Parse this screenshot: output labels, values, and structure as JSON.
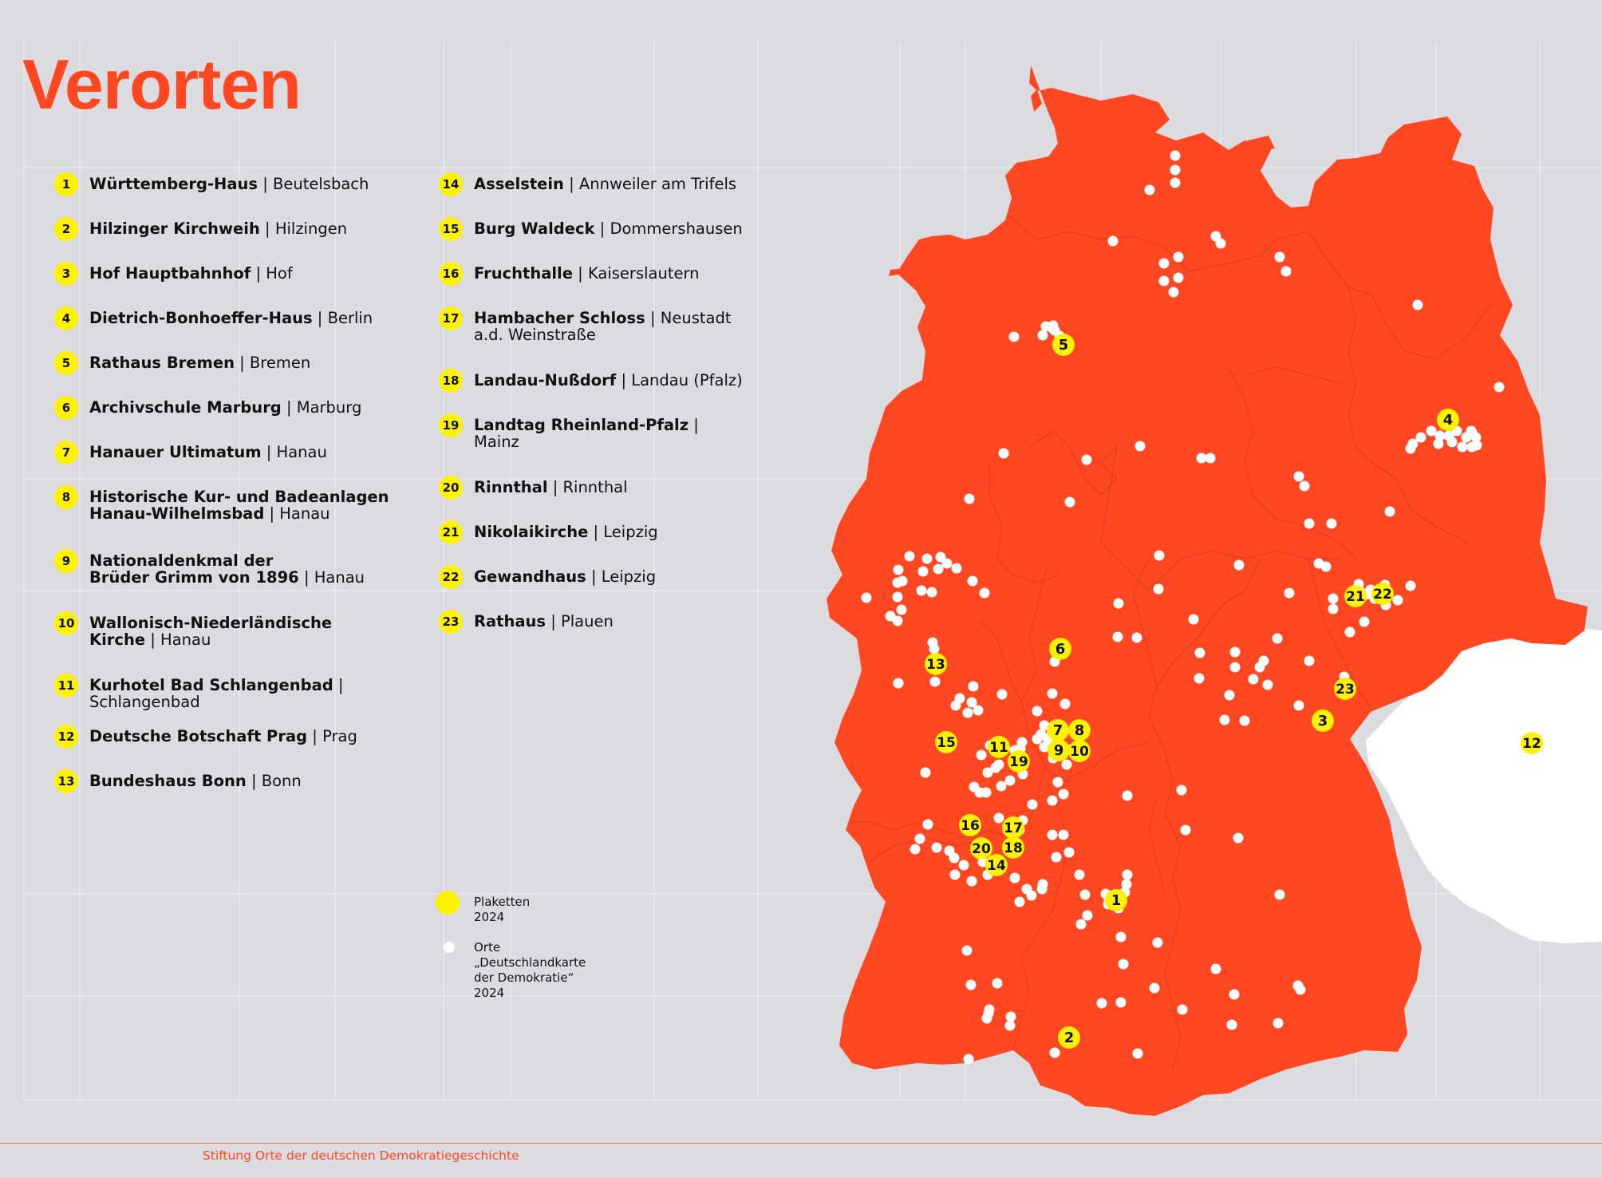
{
  "title": "Verorten",
  "entries_col1": [
    {
      "num": "1",
      "name": "Württemberg-Haus",
      "place": "Beutelsbach"
    },
    {
      "num": "2",
      "name": "Hilzinger Kirchweih",
      "place": "Hilzingen"
    },
    {
      "num": "3",
      "name": "Hof Hauptbahnhof",
      "place": "Hof"
    },
    {
      "num": "4",
      "name": "Dietrich-Bonhoeffer-Haus",
      "place": "Berlin"
    },
    {
      "num": "5",
      "name": "Rathaus Bremen",
      "place": "Bremen"
    },
    {
      "num": "6",
      "name": "Archivschule Marburg",
      "place": "Marburg"
    },
    {
      "num": "7",
      "name": "Hanauer Ultimatum",
      "place": "Hanau"
    },
    {
      "num": "8",
      "name": "Historische Kur- und Badeanlagen\nHanau-Wilhelmsbad",
      "place": "Hanau"
    },
    {
      "num": "9",
      "name": "Nationaldenkmal der\nBrüder Grimm von 1896",
      "place": "Hanau"
    },
    {
      "num": "10",
      "name": "Wallonisch-Niederländische\nKirche",
      "place": "Hanau"
    },
    {
      "num": "11",
      "name": "Kurhotel Bad Schlangenbad",
      "place": "\nSchlangenbad"
    },
    {
      "num": "12",
      "name": "Deutsche Botschaft Prag",
      "place": "Prag"
    },
    {
      "num": "13",
      "name": "Bundeshaus Bonn",
      "place": "Bonn"
    }
  ],
  "entries_col2": [
    {
      "num": "14",
      "name": "Asselstein",
      "place": "Annweiler am Trifels"
    },
    {
      "num": "15",
      "name": "Burg Waldeck",
      "place": "Dommershausen"
    },
    {
      "num": "16",
      "name": "Fruchthalle",
      "place": "Kaiserslautern"
    },
    {
      "num": "17",
      "name": "Hambacher Schloss",
      "place": "Neustadt\na.d. Weinstraße"
    },
    {
      "num": "18",
      "name": "Landau-Nußdorf",
      "place": "Landau (Pfalz)"
    },
    {
      "num": "19",
      "name": "Landtag Rheinland-Pfalz",
      "place": "\nMainz"
    },
    {
      "num": "20",
      "name": "Rinnthal",
      "place": "Rinnthal"
    },
    {
      "num": "21",
      "name": "Nikolaikirche",
      "place": "Leipzig"
    },
    {
      "num": "22",
      "name": "Gewandhaus",
      "place": "Leipzig"
    },
    {
      "num": "23",
      "name": "Rathaus",
      "place": "Plauen"
    }
  ],
  "legend": {
    "plaketten": "Plaketten 2024",
    "orte": "Orte „Deutschlandkarte\nder Demokratie“ 2024"
  },
  "footer": "Stiftung Orte der deutschen Demokratiegeschichte",
  "colors": {
    "accent": "#ff4722",
    "marker": "#fff200",
    "background": "#dcdce0",
    "dot": "#ffffff"
  }
}
